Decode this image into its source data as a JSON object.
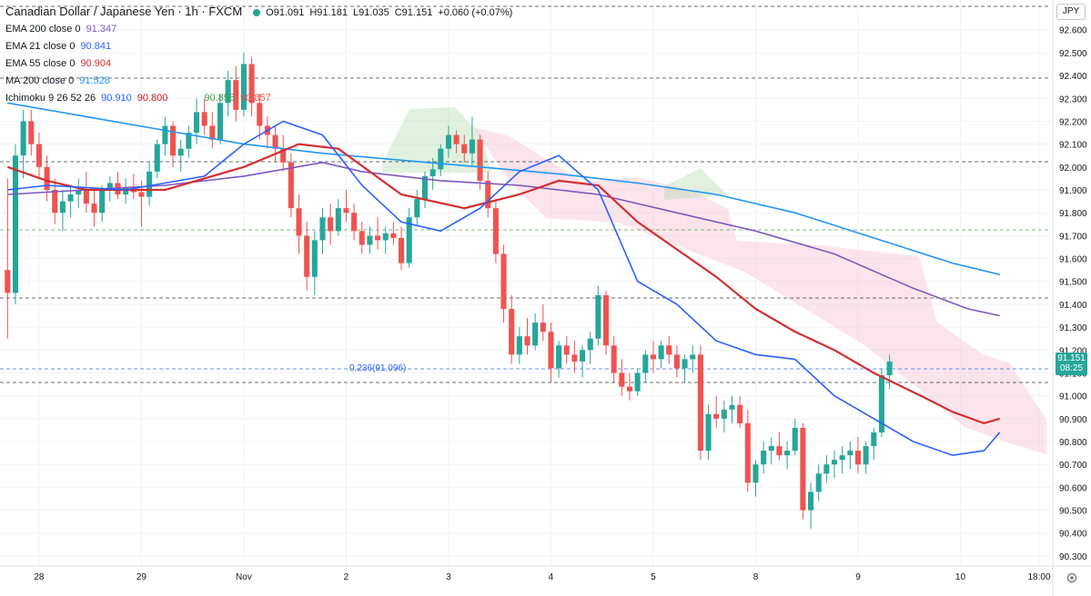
{
  "header": {
    "symbol": "Canadian Dollar / Japanese Yen · 1h · FXCM",
    "open": "O91.091",
    "high": "H91.181",
    "low": "L91.035",
    "close": "C91.151",
    "change": "+0.060 (+0.07%)"
  },
  "indicators": [
    {
      "label": "EMA 200 close 0",
      "value": "91.347",
      "color": "#7e57c2"
    },
    {
      "label": "EMA 21 close 0",
      "value": "90.841",
      "color": "#2962ff"
    },
    {
      "label": "EMA 55 close 0",
      "value": "90.904",
      "color": "#d32f2f"
    },
    {
      "label": "MA 200 close 0",
      "value": "91.528",
      "color": "#2196f3"
    }
  ],
  "ichimoku": {
    "label": "Ichimoku 9 26 52 26",
    "values": [
      {
        "value": "90.910",
        "color": "#2962ff"
      },
      {
        "value": "90.800",
        "color": "#b71c1c"
      },
      {
        "value": "90.855",
        "color": "#43a047"
      },
      {
        "value": "90.857",
        "color": "#ef5350"
      }
    ]
  },
  "currency_button": "JPY",
  "last_price": {
    "value": "91.151",
    "countdown": "08:25"
  },
  "fib_label": "0.236(91.096)",
  "chart_data": {
    "type": "candlestick",
    "title": "Canadian Dollar / Japanese Yen · 1h · FXCM",
    "xlabel": "",
    "ylabel": "",
    "ylim": [
      90.26,
      92.73
    ],
    "y_ticks": [
      "92.600",
      "92.500",
      "92.400",
      "92.300",
      "92.200",
      "92.100",
      "92.000",
      "91.900",
      "91.800",
      "91.700",
      "91.600",
      "91.500",
      "91.400",
      "91.300",
      "91.200",
      "91.100",
      "91.000",
      "90.900",
      "90.800",
      "90.700",
      "90.600",
      "90.500",
      "90.400",
      "90.300"
    ],
    "x_ticks": [
      {
        "label": "28",
        "index": 4
      },
      {
        "label": "29",
        "index": 17
      },
      {
        "label": "Nov",
        "index": 30
      },
      {
        "label": "2",
        "index": 43
      },
      {
        "label": "3",
        "index": 56
      },
      {
        "label": "4",
        "index": 69
      },
      {
        "label": "5",
        "index": 82
      },
      {
        "label": "8",
        "index": 95
      },
      {
        "label": "9",
        "index": 108
      },
      {
        "label": "10",
        "index": 121
      },
      {
        "label": "18:00",
        "index": 131
      }
    ],
    "n_slots": 133,
    "grid": true,
    "colors": {
      "up": "#26a69a",
      "down": "#ef5350",
      "grid": "#f0f3fa"
    },
    "candles": [
      [
        91.55,
        91.95,
        91.25,
        91.45
      ],
      [
        91.45,
        92.1,
        91.4,
        92.05
      ],
      [
        92.05,
        92.25,
        91.95,
        92.2
      ],
      [
        92.2,
        92.25,
        92.05,
        92.1
      ],
      [
        92.1,
        92.15,
        91.95,
        92.0
      ],
      [
        92.0,
        92.05,
        91.85,
        91.9
      ],
      [
        91.9,
        91.95,
        91.75,
        91.8
      ],
      [
        91.8,
        91.9,
        91.72,
        91.85
      ],
      [
        91.85,
        91.92,
        91.78,
        91.88
      ],
      [
        91.88,
        91.95,
        91.82,
        91.9
      ],
      [
        91.9,
        91.98,
        91.8,
        91.84
      ],
      [
        91.84,
        91.9,
        91.74,
        91.8
      ],
      [
        91.8,
        91.92,
        91.76,
        91.9
      ],
      [
        91.9,
        91.96,
        91.85,
        91.93
      ],
      [
        91.93,
        91.98,
        91.86,
        91.88
      ],
      [
        91.88,
        91.95,
        91.84,
        91.91
      ],
      [
        91.91,
        91.97,
        91.86,
        91.89
      ],
      [
        91.89,
        91.94,
        91.74,
        91.87
      ],
      [
        91.87,
        92.02,
        91.83,
        91.98
      ],
      [
        91.98,
        92.12,
        91.95,
        92.1
      ],
      [
        92.1,
        92.22,
        92.05,
        92.18
      ],
      [
        92.18,
        92.2,
        92.0,
        92.05
      ],
      [
        92.05,
        92.12,
        91.98,
        92.08
      ],
      [
        92.08,
        92.18,
        92.04,
        92.15
      ],
      [
        92.15,
        92.3,
        92.1,
        92.24
      ],
      [
        92.24,
        92.3,
        92.14,
        92.18
      ],
      [
        92.18,
        92.24,
        92.08,
        92.12
      ],
      [
        92.12,
        92.32,
        92.1,
        92.28
      ],
      [
        92.28,
        92.42,
        92.22,
        92.38
      ],
      [
        92.38,
        92.44,
        92.2,
        92.25
      ],
      [
        92.25,
        92.5,
        92.22,
        92.45
      ],
      [
        92.45,
        92.48,
        92.22,
        92.28
      ],
      [
        92.28,
        92.32,
        92.12,
        92.18
      ],
      [
        92.18,
        92.22,
        92.08,
        92.14
      ],
      [
        92.14,
        92.18,
        92.02,
        92.08
      ],
      [
        92.08,
        92.14,
        91.98,
        92.02
      ],
      [
        92.02,
        92.06,
        91.78,
        91.82
      ],
      [
        91.82,
        91.88,
        91.62,
        91.7
      ],
      [
        91.7,
        91.76,
        91.46,
        91.52
      ],
      [
        91.52,
        91.72,
        91.44,
        91.68
      ],
      [
        91.68,
        91.82,
        91.62,
        91.78
      ],
      [
        91.78,
        91.84,
        91.66,
        91.72
      ],
      [
        91.72,
        91.86,
        91.7,
        91.82
      ],
      [
        91.82,
        91.9,
        91.76,
        91.8
      ],
      [
        91.8,
        91.84,
        91.68,
        91.72
      ],
      [
        91.72,
        91.76,
        91.62,
        91.66
      ],
      [
        91.66,
        91.74,
        91.62,
        91.7
      ],
      [
        91.7,
        91.78,
        91.64,
        91.68
      ],
      [
        91.68,
        91.74,
        91.62,
        91.71
      ],
      [
        91.71,
        91.76,
        91.66,
        91.69
      ],
      [
        91.69,
        91.74,
        91.55,
        91.58
      ],
      [
        91.58,
        91.82,
        91.56,
        91.78
      ],
      [
        91.78,
        91.9,
        91.74,
        91.86
      ],
      [
        91.86,
        91.98,
        91.82,
        91.96
      ],
      [
        91.96,
        92.04,
        91.9,
        91.99
      ],
      [
        91.99,
        92.1,
        91.96,
        92.08
      ],
      [
        92.08,
        92.18,
        92.04,
        92.14
      ],
      [
        92.14,
        92.16,
        92.06,
        92.1
      ],
      [
        92.1,
        92.14,
        92.02,
        92.06
      ],
      [
        92.06,
        92.22,
        92.0,
        92.12
      ],
      [
        92.12,
        92.14,
        91.9,
        91.94
      ],
      [
        91.94,
        91.98,
        91.78,
        91.82
      ],
      [
        91.82,
        91.86,
        91.58,
        91.62
      ],
      [
        91.62,
        91.66,
        91.32,
        91.38
      ],
      [
        91.38,
        91.44,
        91.14,
        91.18
      ],
      [
        91.18,
        91.3,
        91.14,
        91.26
      ],
      [
        91.26,
        91.34,
        91.18,
        91.22
      ],
      [
        91.22,
        91.36,
        91.2,
        91.32
      ],
      [
        91.32,
        91.4,
        91.24,
        91.28
      ],
      [
        91.28,
        91.32,
        91.06,
        91.12
      ],
      [
        91.12,
        91.24,
        91.08,
        91.22
      ],
      [
        91.22,
        91.26,
        91.14,
        91.18
      ],
      [
        91.18,
        91.24,
        91.1,
        91.15
      ],
      [
        91.15,
        91.22,
        91.08,
        91.2
      ],
      [
        91.2,
        91.28,
        91.14,
        91.25
      ],
      [
        91.25,
        91.48,
        91.22,
        91.44
      ],
      [
        91.44,
        91.46,
        91.18,
        91.22
      ],
      [
        91.22,
        91.26,
        91.06,
        91.1
      ],
      [
        91.1,
        91.16,
        91.0,
        91.04
      ],
      [
        91.04,
        91.1,
        90.98,
        91.02
      ],
      [
        91.02,
        91.12,
        91.0,
        91.1
      ],
      [
        91.1,
        91.2,
        91.06,
        91.18
      ],
      [
        91.18,
        91.24,
        91.1,
        91.16
      ],
      [
        91.16,
        91.24,
        91.12,
        91.22
      ],
      [
        91.22,
        91.26,
        91.14,
        91.18
      ],
      [
        91.18,
        91.22,
        91.08,
        91.12
      ],
      [
        91.12,
        91.18,
        91.06,
        91.16
      ],
      [
        91.16,
        91.22,
        91.1,
        91.18
      ],
      [
        91.18,
        91.22,
        90.72,
        90.76
      ],
      [
        90.76,
        90.96,
        90.72,
        90.92
      ],
      [
        90.92,
        91.0,
        90.86,
        90.9
      ],
      [
        90.9,
        90.98,
        90.84,
        90.94
      ],
      [
        90.94,
        91.0,
        90.88,
        90.96
      ],
      [
        90.96,
        91.0,
        90.86,
        90.88
      ],
      [
        90.88,
        90.94,
        90.58,
        90.62
      ],
      [
        90.62,
        90.72,
        90.56,
        90.7
      ],
      [
        90.7,
        90.8,
        90.66,
        90.76
      ],
      [
        90.76,
        90.82,
        90.7,
        90.78
      ],
      [
        90.78,
        90.84,
        90.72,
        90.74
      ],
      [
        90.74,
        90.8,
        90.68,
        90.76
      ],
      [
        90.76,
        90.9,
        90.74,
        90.86
      ],
      [
        90.86,
        90.88,
        90.46,
        90.5
      ],
      [
        90.5,
        90.62,
        90.42,
        90.58
      ],
      [
        90.58,
        90.7,
        90.54,
        90.66
      ],
      [
        90.66,
        90.74,
        90.62,
        90.7
      ],
      [
        90.7,
        90.76,
        90.64,
        90.72
      ],
      [
        90.72,
        90.78,
        90.66,
        90.74
      ],
      [
        90.74,
        90.8,
        90.68,
        90.76
      ],
      [
        90.76,
        90.82,
        90.66,
        90.7
      ],
      [
        90.7,
        90.8,
        90.66,
        90.78
      ],
      [
        90.78,
        90.86,
        90.72,
        90.84
      ],
      [
        90.84,
        91.12,
        90.82,
        91.09
      ],
      [
        91.09,
        91.18,
        91.03,
        91.15
      ]
    ],
    "series": [
      {
        "name": "MA 200",
        "color": "#2196f3",
        "points": [
          [
            0,
            92.28
          ],
          [
            10,
            92.22
          ],
          [
            20,
            92.16
          ],
          [
            30,
            92.1
          ],
          [
            40,
            92.06
          ],
          [
            50,
            92.03
          ],
          [
            60,
            92.0
          ],
          [
            70,
            91.97
          ],
          [
            80,
            91.93
          ],
          [
            90,
            91.88
          ],
          [
            100,
            91.8
          ],
          [
            110,
            91.69
          ],
          [
            120,
            91.58
          ],
          [
            126,
            91.53
          ]
        ]
      },
      {
        "name": "EMA 200",
        "color": "#7e57c2",
        "points": [
          [
            0,
            91.88
          ],
          [
            10,
            91.9
          ],
          [
            20,
            91.92
          ],
          [
            30,
            91.96
          ],
          [
            40,
            92.02
          ],
          [
            45,
            91.98
          ],
          [
            55,
            91.94
          ],
          [
            65,
            91.92
          ],
          [
            75,
            91.88
          ],
          [
            85,
            91.8
          ],
          [
            95,
            91.72
          ],
          [
            105,
            91.62
          ],
          [
            115,
            91.47
          ],
          [
            122,
            91.38
          ],
          [
            126,
            91.35
          ]
        ]
      },
      {
        "name": "EMA 55",
        "color": "#d32f2f",
        "points": [
          [
            0,
            92.0
          ],
          [
            5,
            91.94
          ],
          [
            10,
            91.9
          ],
          [
            20,
            91.9
          ],
          [
            30,
            92.0
          ],
          [
            37,
            92.1
          ],
          [
            42,
            92.08
          ],
          [
            50,
            91.88
          ],
          [
            58,
            91.82
          ],
          [
            65,
            91.88
          ],
          [
            70,
            91.94
          ],
          [
            75,
            91.92
          ],
          [
            80,
            91.76
          ],
          [
            85,
            91.64
          ],
          [
            90,
            91.52
          ],
          [
            95,
            91.38
          ],
          [
            100,
            91.28
          ],
          [
            105,
            91.2
          ],
          [
            110,
            91.1
          ],
          [
            116,
            91.0
          ],
          [
            120,
            90.93
          ],
          [
            124,
            90.88
          ],
          [
            126,
            90.9
          ]
        ]
      },
      {
        "name": "EMA 21",
        "color": "#2962ff",
        "points": [
          [
            0,
            91.9
          ],
          [
            5,
            91.92
          ],
          [
            15,
            91.9
          ],
          [
            25,
            91.96
          ],
          [
            30,
            92.1
          ],
          [
            35,
            92.2
          ],
          [
            40,
            92.14
          ],
          [
            45,
            91.92
          ],
          [
            50,
            91.76
          ],
          [
            55,
            91.72
          ],
          [
            60,
            91.82
          ],
          [
            65,
            91.98
          ],
          [
            70,
            92.05
          ],
          [
            75,
            91.9
          ],
          [
            80,
            91.5
          ],
          [
            85,
            91.4
          ],
          [
            90,
            91.24
          ],
          [
            95,
            91.18
          ],
          [
            100,
            91.16
          ],
          [
            105,
            91.0
          ],
          [
            110,
            90.9
          ],
          [
            115,
            90.8
          ],
          [
            120,
            90.74
          ],
          [
            124,
            90.76
          ],
          [
            126,
            90.84
          ]
        ]
      }
    ]
  }
}
